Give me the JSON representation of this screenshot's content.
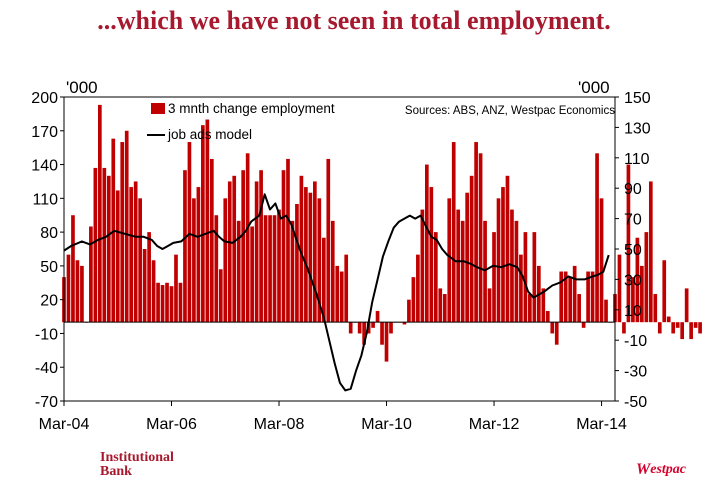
{
  "title": "...which we have not seen in total employment.",
  "footer": {
    "left_line1": "Institutional",
    "left_line2": "Bank",
    "right_mark": "W",
    "right_word": "estpac"
  },
  "colors": {
    "title": "#a6192e",
    "bar": "#c00000",
    "line": "#000000"
  },
  "chart_data": {
    "type": "bar+line",
    "title": "",
    "left_axis_unit": "'000",
    "right_axis_unit": "'000",
    "source": "Sources: ABS, ANZ, Westpac Economics",
    "left_ylim": [
      -70,
      200
    ],
    "left_ticks": [
      200,
      170,
      140,
      110,
      80,
      50,
      20,
      -10,
      -40,
      -70
    ],
    "right_ylim": [
      -50,
      150
    ],
    "right_ticks": [
      150,
      130,
      110,
      90,
      70,
      50,
      30,
      10,
      -10,
      -30,
      -50
    ],
    "x_range": [
      2004.167,
      2014.417
    ],
    "x_ticks": [
      {
        "label": "Mar-04",
        "value": 2004.167
      },
      {
        "label": "Mar-06",
        "value": 2006.167
      },
      {
        "label": "Mar-08",
        "value": 2008.167
      },
      {
        "label": "Mar-10",
        "value": 2010.167
      },
      {
        "label": "Mar-12",
        "value": 2012.167
      },
      {
        "label": "Mar-14",
        "value": 2014.167
      }
    ],
    "series": [
      {
        "name": "3 mnth change employment",
        "axis": "left",
        "kind": "bar",
        "start": 2004.167,
        "step": 0.08333,
        "values": [
          40,
          60,
          95,
          55,
          50,
          0,
          85,
          137,
          193,
          137,
          130,
          163,
          117,
          160,
          170,
          120,
          125,
          110,
          65,
          80,
          55,
          35,
          33,
          35,
          32,
          60,
          35,
          135,
          160,
          110,
          120,
          175,
          180,
          145,
          95,
          47,
          110,
          125,
          130,
          90,
          135,
          150,
          85,
          125,
          135,
          95,
          95,
          95,
          100,
          135,
          145,
          90,
          105,
          130,
          120,
          115,
          125,
          110,
          75,
          145,
          90,
          50,
          45,
          60,
          -10,
          0,
          -10,
          -20,
          -10,
          -5,
          10,
          -20,
          -35,
          -10,
          0,
          0,
          -2,
          20,
          40,
          60,
          100,
          140,
          120,
          80,
          30,
          25,
          110,
          160,
          100,
          90,
          115,
          130,
          160,
          150,
          90,
          30,
          80,
          110,
          120,
          130,
          100,
          90,
          60,
          80,
          25,
          80,
          50,
          30,
          10,
          -10,
          -20,
          45,
          45,
          40,
          50,
          25,
          -5,
          45,
          45,
          150,
          110,
          20,
          0,
          25,
          60,
          -10,
          140,
          40,
          75,
          50,
          80,
          125,
          25,
          -10,
          55,
          5,
          -10,
          -5,
          -15,
          30,
          -15,
          -5,
          -10
        ]
      },
      {
        "name": "job ads model",
        "axis": "right",
        "kind": "line",
        "points": [
          [
            2004.17,
            49
          ],
          [
            2004.3,
            52
          ],
          [
            2004.5,
            55
          ],
          [
            2004.65,
            53
          ],
          [
            2004.8,
            56
          ],
          [
            2004.95,
            58
          ],
          [
            2005.1,
            62
          ],
          [
            2005.3,
            60
          ],
          [
            2005.5,
            58
          ],
          [
            2005.65,
            58
          ],
          [
            2005.8,
            56
          ],
          [
            2005.9,
            52
          ],
          [
            2006.0,
            50
          ],
          [
            2006.1,
            52
          ],
          [
            2006.2,
            54
          ],
          [
            2006.35,
            55
          ],
          [
            2006.5,
            60
          ],
          [
            2006.65,
            58
          ],
          [
            2006.8,
            60
          ],
          [
            2006.95,
            62
          ],
          [
            2007.05,
            58
          ],
          [
            2007.15,
            55
          ],
          [
            2007.3,
            54
          ],
          [
            2007.45,
            58
          ],
          [
            2007.55,
            62
          ],
          [
            2007.65,
            68
          ],
          [
            2007.8,
            72
          ],
          [
            2007.9,
            86
          ],
          [
            2008.0,
            76
          ],
          [
            2008.1,
            80
          ],
          [
            2008.2,
            70
          ],
          [
            2008.3,
            72
          ],
          [
            2008.4,
            66
          ],
          [
            2008.55,
            50
          ],
          [
            2008.7,
            37
          ],
          [
            2008.85,
            22
          ],
          [
            2009.0,
            5
          ],
          [
            2009.1,
            -10
          ],
          [
            2009.2,
            -25
          ],
          [
            2009.3,
            -38
          ],
          [
            2009.4,
            -43
          ],
          [
            2009.5,
            -42
          ],
          [
            2009.6,
            -30
          ],
          [
            2009.7,
            -20
          ],
          [
            2009.8,
            -5
          ],
          [
            2009.9,
            15
          ],
          [
            2010.0,
            30
          ],
          [
            2010.1,
            45
          ],
          [
            2010.2,
            55
          ],
          [
            2010.3,
            64
          ],
          [
            2010.4,
            68
          ],
          [
            2010.5,
            70
          ],
          [
            2010.6,
            72
          ],
          [
            2010.7,
            70
          ],
          [
            2010.8,
            72
          ],
          [
            2010.9,
            65
          ],
          [
            2011.0,
            58
          ],
          [
            2011.1,
            56
          ],
          [
            2011.2,
            50
          ],
          [
            2011.3,
            46
          ],
          [
            2011.45,
            42
          ],
          [
            2011.6,
            42
          ],
          [
            2011.75,
            40
          ],
          [
            2011.85,
            38
          ],
          [
            2012.0,
            36
          ],
          [
            2012.15,
            39
          ],
          [
            2012.3,
            38
          ],
          [
            2012.45,
            40
          ],
          [
            2012.6,
            38
          ],
          [
            2012.7,
            32
          ],
          [
            2012.8,
            22
          ],
          [
            2012.9,
            18
          ],
          [
            2013.0,
            20
          ],
          [
            2013.1,
            22
          ],
          [
            2013.25,
            26
          ],
          [
            2013.4,
            28
          ],
          [
            2013.55,
            32
          ],
          [
            2013.7,
            30
          ],
          [
            2013.85,
            30
          ],
          [
            2014.0,
            32
          ],
          [
            2014.1,
            33
          ],
          [
            2014.2,
            35
          ],
          [
            2014.3,
            46
          ]
        ]
      }
    ]
  }
}
